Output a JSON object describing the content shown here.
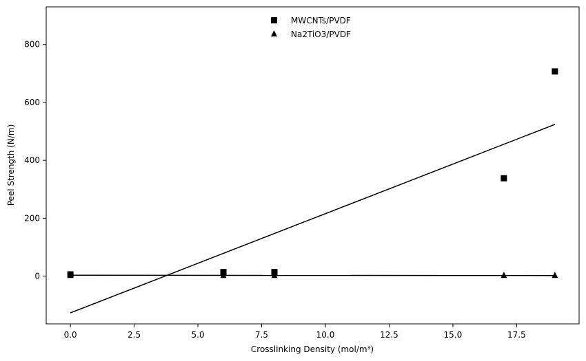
{
  "chart_data": {
    "type": "scatter",
    "title": "",
    "xlabel": "Crosslinking Density (mol/m³)",
    "ylabel": "Peel Strength (N/m)",
    "xlim": [
      -0.95,
      19.95
    ],
    "ylim": [
      -165,
      930
    ],
    "xticks": [
      0.0,
      2.5,
      5.0,
      7.5,
      10.0,
      12.5,
      15.0,
      17.5
    ],
    "xtick_labels": [
      "0.0",
      "2.5",
      "5.0",
      "7.5",
      "10.0",
      "12.5",
      "15.0",
      "17.5"
    ],
    "yticks": [
      0,
      200,
      400,
      600,
      800
    ],
    "ytick_labels": [
      "0",
      "200",
      "400",
      "600",
      "800"
    ],
    "grid": false,
    "legend_position": "top-center",
    "series": [
      {
        "name": "MWCNTs/PVDF",
        "marker": "square",
        "color": "#000000",
        "x": [
          0,
          6,
          8,
          17,
          19
        ],
        "y": [
          6,
          14,
          14,
          338,
          707
        ],
        "fit": {
          "x": [
            0,
            19
          ],
          "y": [
            -127,
            524
          ]
        }
      },
      {
        "name": "Na2TiO3/PVDF",
        "marker": "triangle",
        "color": "#000000",
        "x": [
          0,
          6,
          8,
          17,
          19
        ],
        "y": [
          3,
          3,
          3,
          3,
          3
        ],
        "fit": {
          "x": [
            0,
            19
          ],
          "y": [
            3,
            2
          ]
        }
      }
    ]
  }
}
